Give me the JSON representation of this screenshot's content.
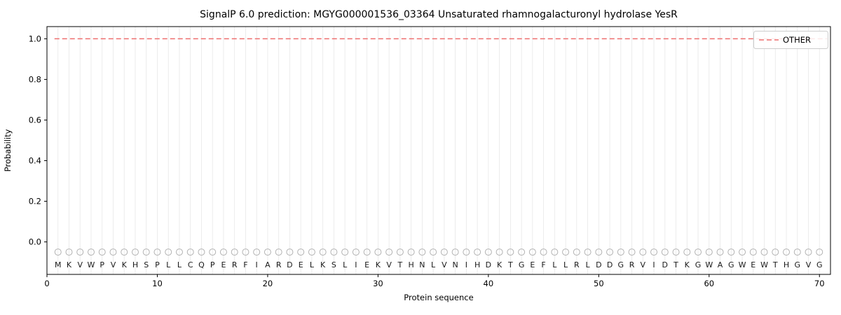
{
  "chart_data": {
    "type": "line",
    "title": "SignalP 6.0 prediction: MGYG000001536_03364 Unsaturated rhamnogalacturonyl hydrolase YesR",
    "xlabel": "Protein sequence",
    "ylabel": "Probability",
    "xlim": [
      0,
      71
    ],
    "ylim": [
      -0.16,
      1.06
    ],
    "x_ticks": [
      0,
      10,
      20,
      30,
      40,
      50,
      60,
      70
    ],
    "y_ticks": [
      0.0,
      0.2,
      0.4,
      0.6,
      0.8,
      1.0
    ],
    "grid": "vertical line at every residue position",
    "legend": {
      "position": "upper right",
      "entries": [
        {
          "label": "OTHER",
          "color": "#ee6f6f",
          "style": "dashed"
        }
      ]
    },
    "series": [
      {
        "name": "OTHER",
        "style": "dashed",
        "color": "#ee6f6f",
        "y_constant": 1.0,
        "x_start": 1,
        "x_end": 70
      }
    ],
    "sequence": [
      "M",
      "K",
      "V",
      "W",
      "P",
      "V",
      "K",
      "H",
      "S",
      "P",
      "L",
      "L",
      "C",
      "Q",
      "P",
      "E",
      "R",
      "F",
      "I",
      "A",
      "R",
      "D",
      "E",
      "L",
      "K",
      "S",
      "L",
      "I",
      "E",
      "K",
      "V",
      "T",
      "H",
      "N",
      "L",
      "V",
      "N",
      "I",
      "H",
      "D",
      "K",
      "T",
      "G",
      "E",
      "F",
      "L",
      "L",
      "R",
      "L",
      "D",
      "D",
      "G",
      "R",
      "V",
      "I",
      "D",
      "T",
      "K",
      "G",
      "W",
      "A",
      "G",
      "W",
      "E",
      "W",
      "T",
      "H",
      "G",
      "V",
      "G"
    ],
    "markers": {
      "shape": "open-circle",
      "y": -0.05,
      "color": "#b3b3b3"
    },
    "colors": {
      "grid": "#e7e7e7",
      "spine": "#000000",
      "tick": "#000000",
      "letters": "#1a1a1a"
    }
  }
}
